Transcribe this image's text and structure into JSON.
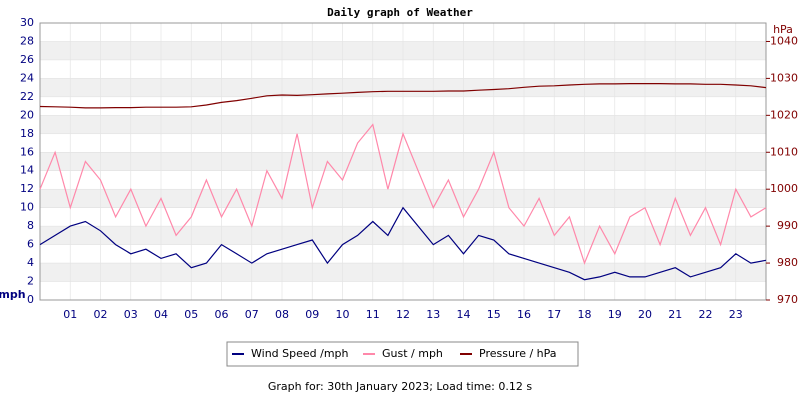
{
  "chart_data": {
    "type": "line",
    "title": "Daily graph of Weather",
    "ylabel": "mph",
    "y2label": "hPa",
    "x": [
      0,
      0.5,
      1,
      1.5,
      2,
      2.5,
      3,
      3.5,
      4,
      4.5,
      5,
      5.5,
      6,
      6.5,
      7,
      7.5,
      8,
      8.5,
      9,
      9.5,
      10,
      10.5,
      11,
      11.5,
      12,
      12.5,
      13,
      13.5,
      14,
      14.5,
      15,
      15.5,
      16,
      16.5,
      17,
      17.5,
      18,
      18.5,
      19,
      19.5,
      20,
      20.5,
      21,
      21.5,
      22,
      22.5,
      23,
      23.5,
      24
    ],
    "series": [
      {
        "name": "Wind Speed /mph",
        "color": "#000080",
        "axis": "y",
        "values": [
          6,
          7,
          8,
          8.5,
          7.5,
          6,
          5,
          5.5,
          4.5,
          5,
          3.5,
          4,
          6,
          5,
          4,
          5,
          5.5,
          6,
          6.5,
          4,
          6,
          7,
          8.5,
          7,
          10,
          8,
          6,
          7,
          5,
          7,
          6.5,
          5,
          4.5,
          4,
          3.5,
          3,
          2.2,
          2.5,
          3,
          2.5,
          2.5,
          3,
          3.5,
          2.5,
          3,
          3.5,
          5,
          4,
          4.3
        ]
      },
      {
        "name": "Gust / mph",
        "color": "#ff88aa",
        "axis": "y",
        "values": [
          12,
          16,
          10,
          15,
          13,
          9,
          12,
          8,
          11,
          7,
          9,
          13,
          9,
          12,
          8,
          14,
          11,
          18,
          10,
          15,
          13,
          17,
          19,
          12,
          18,
          14,
          10,
          13,
          9,
          12,
          16,
          10,
          8,
          11,
          7,
          9,
          4,
          8,
          5,
          9,
          10,
          6,
          11,
          7,
          10,
          6,
          12,
          9,
          10
        ]
      },
      {
        "name": "Pressure / hPa",
        "color": "#800000",
        "axis": "y2",
        "values": [
          1022.4,
          1022.3,
          1022.2,
          1022.0,
          1022.0,
          1022.1,
          1022.1,
          1022.2,
          1022.2,
          1022.2,
          1022.3,
          1022.8,
          1023.5,
          1024.0,
          1024.6,
          1025.3,
          1025.5,
          1025.4,
          1025.6,
          1025.8,
          1026.0,
          1026.2,
          1026.4,
          1026.5,
          1026.5,
          1026.5,
          1026.5,
          1026.6,
          1026.6,
          1026.8,
          1027.0,
          1027.2,
          1027.6,
          1027.9,
          1028.0,
          1028.2,
          1028.4,
          1028.5,
          1028.5,
          1028.6,
          1028.6,
          1028.6,
          1028.5,
          1028.5,
          1028.4,
          1028.4,
          1028.2,
          1028.0,
          1027.5
        ]
      }
    ],
    "xlim": [
      0,
      24
    ],
    "xticks": [
      {
        "value": 1,
        "label": "01"
      },
      {
        "value": 2,
        "label": "02"
      },
      {
        "value": 3,
        "label": "03"
      },
      {
        "value": 4,
        "label": "04"
      },
      {
        "value": 5,
        "label": "05"
      },
      {
        "value": 6,
        "label": "06"
      },
      {
        "value": 7,
        "label": "07"
      },
      {
        "value": 8,
        "label": "08"
      },
      {
        "value": 9,
        "label": "09"
      },
      10,
      11,
      12,
      13,
      14,
      15,
      16,
      17,
      18,
      19,
      20,
      21,
      22,
      23
    ],
    "ylim": [
      0,
      30
    ],
    "yticks": [
      0,
      2,
      4,
      6,
      8,
      10,
      12,
      14,
      16,
      18,
      20,
      22,
      24,
      26,
      28,
      30
    ],
    "y2lim": [
      970,
      1045
    ],
    "y2ticks": [
      970,
      980,
      990,
      1000,
      1010,
      1020,
      1030,
      1040
    ],
    "grid": true,
    "footer": "Graph for: 30th January 2023; Load time: 0.12 s"
  }
}
